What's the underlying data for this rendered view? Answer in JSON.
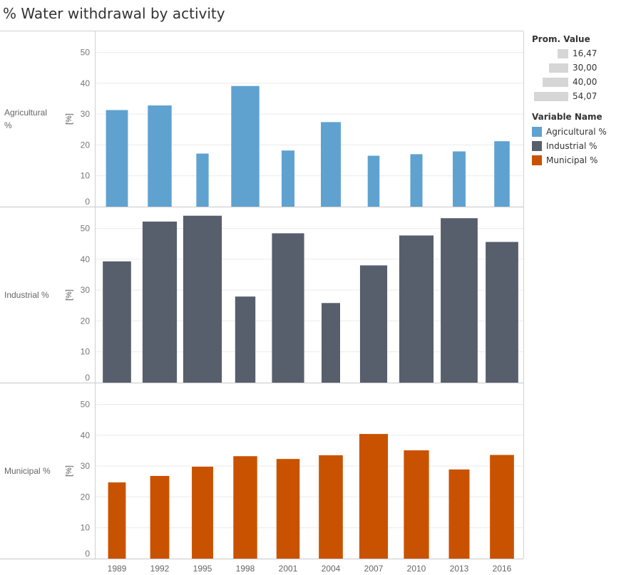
{
  "title": "% Water withdrawal by activity",
  "chart_data": {
    "type": "bar",
    "categories": [
      "1989",
      "1992",
      "1995",
      "1998",
      "2001",
      "2004",
      "2007",
      "2010",
      "2013",
      "2016"
    ],
    "ylabel": "[%]",
    "ylim": [
      0,
      55
    ],
    "yticks": [
      0,
      10,
      20,
      30,
      40,
      50
    ],
    "grid": true,
    "legend_position": "right",
    "series": [
      {
        "name": "Agricultural %",
        "row_label": "Agricultural %",
        "color": "#5fa2d0",
        "values": [
          31.3,
          32.8,
          17.2,
          39.1,
          18.2,
          27.4,
          16.5,
          17.0,
          17.9,
          21.2
        ],
        "widths": [
          30.7,
          33.3,
          17.2,
          39.3,
          18.0,
          27.9,
          16.5,
          17.0,
          17.9,
          21.5
        ]
      },
      {
        "name": "Industrial %",
        "row_label": "Industrial %",
        "color": "#575f6d",
        "values": [
          39.3,
          52.2,
          54.1,
          27.9,
          48.4,
          25.8,
          38.0,
          47.7,
          53.3,
          45.6
        ],
        "widths": [
          39.5,
          48.0,
          54.0,
          28.3,
          45.0,
          25.9,
          38.0,
          47.9,
          51.6,
          45.6
        ]
      },
      {
        "name": "Municipal %",
        "row_label": "Municipal %",
        "color": "#c95200",
        "values": [
          24.7,
          26.8,
          29.8,
          33.2,
          32.3,
          33.5,
          40.4,
          35.1,
          28.9,
          33.6
        ],
        "widths": [
          24.7,
          26.7,
          29.8,
          33.3,
          32.4,
          33.5,
          40.0,
          35.1,
          28.9,
          33.6
        ]
      }
    ],
    "size_legend": {
      "title": "Prom. Value",
      "items": [
        {
          "label": "16,47",
          "value": 16.47
        },
        {
          "label": "30,00",
          "value": 30.0
        },
        {
          "label": "40,00",
          "value": 40.0
        },
        {
          "label": "54,07",
          "value": 54.07
        }
      ]
    },
    "color_legend": {
      "title": "Variable Name",
      "items": [
        {
          "label": "Agricultural %",
          "color": "#5fa2d0"
        },
        {
          "label": "Industrial %",
          "color": "#575f6d"
        },
        {
          "label": "Municipal %",
          "color": "#c95200"
        }
      ]
    }
  }
}
